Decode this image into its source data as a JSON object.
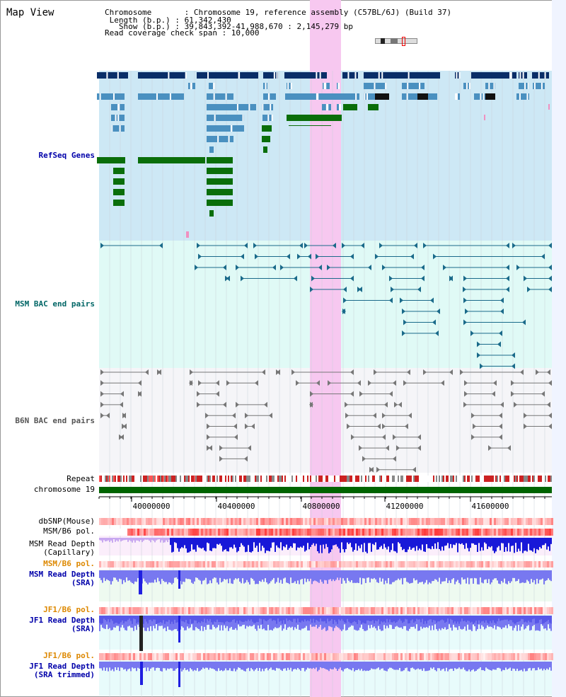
{
  "page": {
    "title": "Map View"
  },
  "info": {
    "chromosome": "Chromosome       : Chromosome 19, reference assembly (C57BL/6J) (Build 37)",
    "length": " Length (b.p.) : 61,342,430",
    "show": "   Show (b.p.) : 39,843,392-41,988,670 : 2,145,279 bp",
    "coverage": "Read coverage check span : 10,000"
  },
  "tracks": {
    "refseq": "RefSeq Genes",
    "msm_bac": "MSM BAC end pairs",
    "b6n_bac": "B6N BAC end pairs",
    "repeat": "Repeat",
    "chromosome": "chromosome 19",
    "dbsnp": "dbSNP(Mouse)",
    "msm_b6_pol": "MSM/B6 pol.",
    "msm_depth_cap": "MSM Read Depth\n(Capillary)",
    "msm_b6_pol2": "MSM/B6 pol.",
    "msm_depth_sra": "MSM Read Depth\n(SRA)",
    "jf1_b6_pol": "JF1/B6 pol.",
    "jf1_depth_sra": "JF1 Read Depth\n(SRA)",
    "jf1_b6_pol2": "JF1/B6 pol.",
    "jf1_depth_trim": "JF1 Read Depth\n(SRA trimmed)"
  },
  "axis": {
    "ticks": [
      "40000000",
      "40400000",
      "40800000",
      "41200000",
      "41600000"
    ]
  },
  "colors": {
    "refseq_bg": "#cde8f5",
    "msm_bac_bg": "#e0faf6",
    "b6n_bac_bg": "#f5f5f8",
    "highlight": "#f7c8f0",
    "gene_dark": "#0a2e68",
    "gene_mid": "#4a90c0",
    "gene_green": "#0a6e0a",
    "bac_teal": "#1a6a8a",
    "bac_gray": "#777777",
    "chrom_green": "#006400",
    "depth_blue": "#2020e0",
    "depth_light": "#7878f0"
  }
}
